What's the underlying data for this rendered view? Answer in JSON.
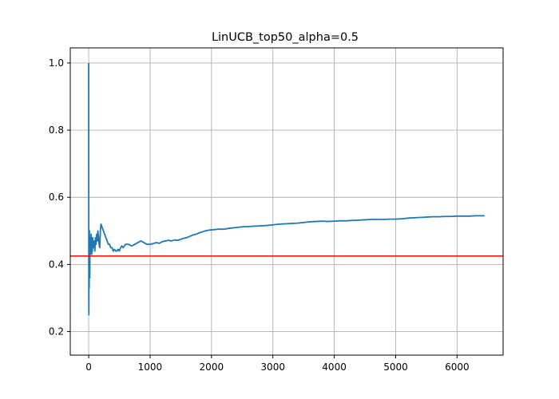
{
  "chart_data": {
    "type": "line",
    "title": "LinUCB_top50_alpha=0.5",
    "xlabel": "",
    "ylabel": "",
    "xlim": [
      -300,
      6750
    ],
    "ylim": [
      0.13,
      1.045
    ],
    "grid": true,
    "legend": "none",
    "x_ticks": [
      0,
      1000,
      2000,
      3000,
      4000,
      5000,
      6000
    ],
    "x_tick_labels": [
      "0",
      "1000",
      "2000",
      "3000",
      "4000",
      "5000",
      "6000"
    ],
    "y_ticks": [
      0.2,
      0.4,
      0.6,
      0.8,
      1.0
    ],
    "y_tick_labels": [
      "0.2",
      "0.4",
      "0.6",
      "0.8",
      "1.0"
    ],
    "series": [
      {
        "color": "#1f77b4",
        "x": [
          0,
          1,
          2,
          3,
          4,
          5,
          6,
          8,
          10,
          12,
          15,
          18,
          20,
          25,
          30,
          35,
          40,
          45,
          50,
          55,
          60,
          65,
          70,
          80,
          90,
          100,
          110,
          120,
          130,
          140,
          150,
          160,
          170,
          180,
          190,
          200,
          220,
          240,
          260,
          280,
          300,
          320,
          340,
          360,
          380,
          400,
          420,
          440,
          460,
          480,
          500,
          520,
          540,
          560,
          580,
          600,
          650,
          700,
          750,
          800,
          850,
          900,
          950,
          1000,
          1050,
          1100,
          1150,
          1200,
          1250,
          1300,
          1350,
          1400,
          1450,
          1500,
          1550,
          1600,
          1650,
          1700,
          1750,
          1800,
          1850,
          1900,
          1950,
          2000,
          2100,
          2200,
          2300,
          2400,
          2500,
          2600,
          2700,
          2800,
          2900,
          3000,
          3100,
          3200,
          3300,
          3400,
          3500,
          3600,
          3700,
          3800,
          3900,
          4000,
          4100,
          4200,
          4300,
          4400,
          4500,
          4600,
          4700,
          4800,
          4900,
          5000,
          5100,
          5200,
          5300,
          5400,
          5500,
          5600,
          5700,
          5800,
          5900,
          6000,
          6100,
          6200,
          6300,
          6400,
          6450
        ],
        "values": [
          1.0,
          0.5,
          0.33,
          0.25,
          0.4,
          0.5,
          0.43,
          0.33,
          0.4,
          0.5,
          0.44,
          0.36,
          0.47,
          0.43,
          0.48,
          0.44,
          0.49,
          0.45,
          0.43,
          0.47,
          0.44,
          0.48,
          0.46,
          0.45,
          0.47,
          0.44,
          0.48,
          0.46,
          0.49,
          0.47,
          0.5,
          0.48,
          0.46,
          0.45,
          0.5,
          0.52,
          0.51,
          0.5,
          0.49,
          0.48,
          0.47,
          0.46,
          0.46,
          0.45,
          0.45,
          0.44,
          0.445,
          0.44,
          0.44,
          0.445,
          0.44,
          0.45,
          0.455,
          0.45,
          0.455,
          0.46,
          0.46,
          0.455,
          0.46,
          0.465,
          0.47,
          0.465,
          0.46,
          0.46,
          0.462,
          0.465,
          0.463,
          0.468,
          0.47,
          0.472,
          0.47,
          0.473,
          0.472,
          0.475,
          0.478,
          0.48,
          0.484,
          0.488,
          0.49,
          0.494,
          0.497,
          0.5,
          0.502,
          0.503,
          0.505,
          0.505,
          0.508,
          0.51,
          0.512,
          0.513,
          0.514,
          0.515,
          0.516,
          0.518,
          0.52,
          0.521,
          0.522,
          0.523,
          0.525,
          0.527,
          0.528,
          0.529,
          0.528,
          0.529,
          0.53,
          0.53,
          0.531,
          0.532,
          0.533,
          0.534,
          0.534,
          0.534,
          0.535,
          0.535,
          0.536,
          0.538,
          0.539,
          0.54,
          0.541,
          0.542,
          0.542,
          0.543,
          0.543,
          0.544,
          0.544,
          0.544,
          0.545,
          0.545,
          0.545
        ]
      }
    ],
    "hlines": [
      {
        "y": 0.425,
        "color": "#ff0000"
      }
    ]
  }
}
